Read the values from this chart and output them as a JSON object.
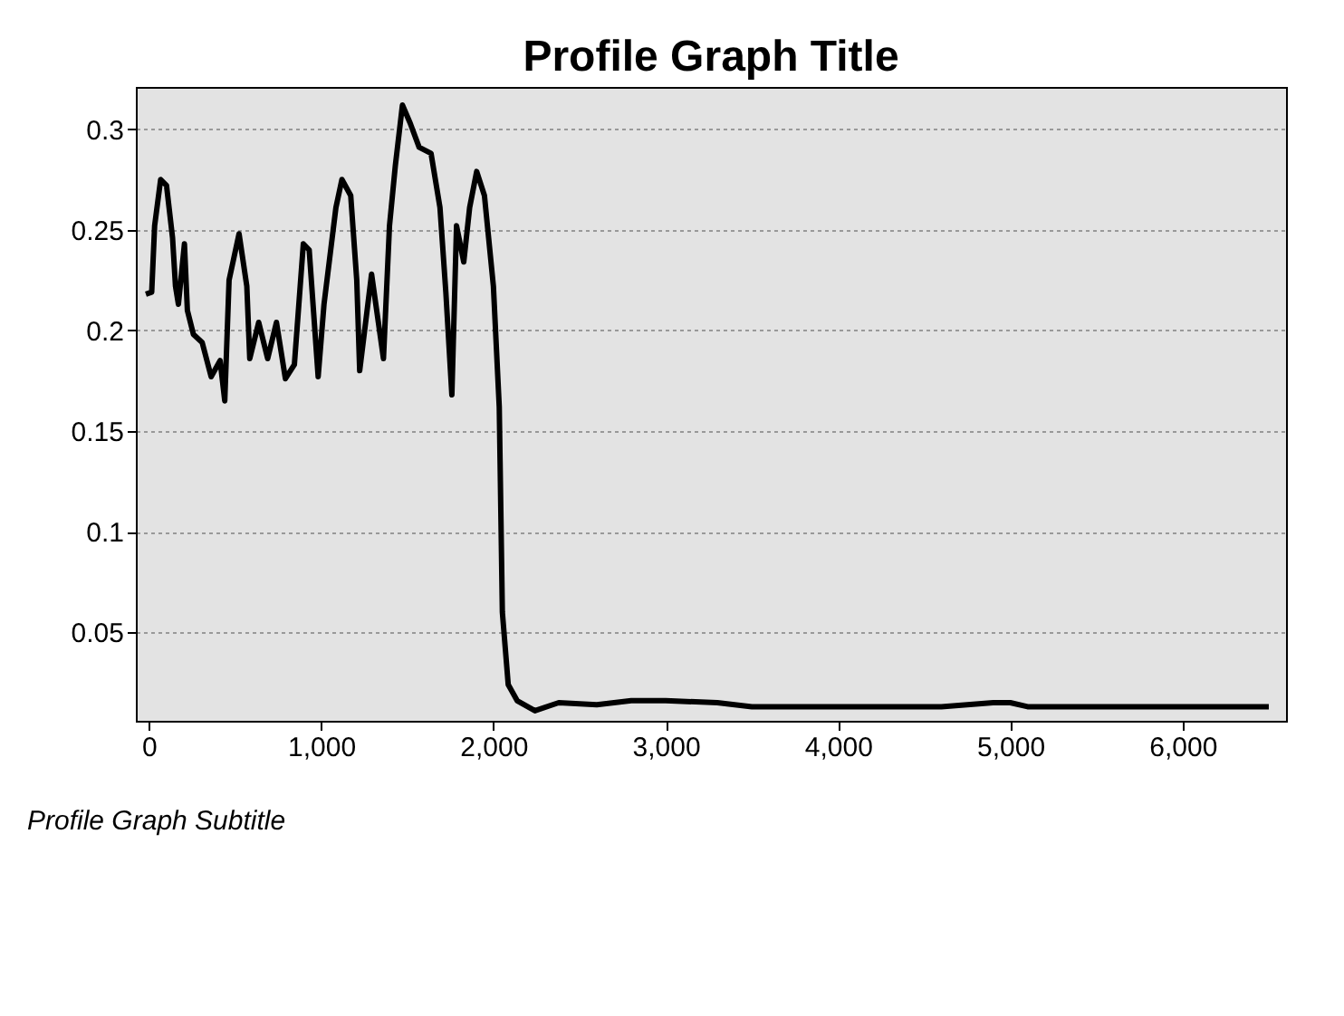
{
  "chart_data": {
    "type": "line",
    "title": "Profile Graph Title",
    "subtitle": "Profile Graph Subtitle",
    "x": [
      -17,
      17,
      34,
      69,
      103,
      138,
      155,
      172,
      207,
      224,
      259,
      310,
      362,
      414,
      441,
      466,
      524,
      569,
      586,
      638,
      690,
      741,
      793,
      845,
      897,
      931,
      983,
      1017,
      1086,
      1121,
      1172,
      1207,
      1224,
      1293,
      1362,
      1397,
      1431,
      1472,
      1517,
      1569,
      1638,
      1690,
      1724,
      1759,
      1786,
      1828,
      1862,
      1903,
      1948,
      2000,
      2034,
      2052,
      2086,
      2138,
      2241,
      2379,
      2600,
      2800,
      3000,
      3300,
      3500,
      3800,
      4200,
      4600,
      4900,
      5000,
      5100,
      5600,
      6000,
      6300,
      6500
    ],
    "series": [
      {
        "color": "#000000",
        "values": [
          0.218,
          0.219,
          0.252,
          0.275,
          0.272,
          0.246,
          0.222,
          0.213,
          0.243,
          0.21,
          0.198,
          0.194,
          0.177,
          0.185,
          0.165,
          0.225,
          0.248,
          0.222,
          0.186,
          0.204,
          0.186,
          0.204,
          0.176,
          0.183,
          0.243,
          0.24,
          0.177,
          0.213,
          0.261,
          0.275,
          0.267,
          0.225,
          0.18,
          0.228,
          0.186,
          0.252,
          0.282,
          0.312,
          0.303,
          0.291,
          0.288,
          0.261,
          0.219,
          0.168,
          0.252,
          0.234,
          0.261,
          0.279,
          0.267,
          0.222,
          0.162,
          0.06,
          0.024,
          0.016,
          0.011,
          0.015,
          0.014,
          0.016,
          0.016,
          0.015,
          0.013,
          0.013,
          0.013,
          0.013,
          0.015,
          0.015,
          0.013,
          0.013,
          0.013,
          0.013,
          0.013
        ]
      }
    ],
    "xlim": [
      -75,
      6600
    ],
    "xticks": [
      {
        "value": 0,
        "label": "0"
      },
      {
        "value": 1000,
        "label": "1,000"
      },
      {
        "value": 2000,
        "label": "2,000"
      },
      {
        "value": 3000,
        "label": "3,000"
      },
      {
        "value": 4000,
        "label": "4,000"
      },
      {
        "value": 5000,
        "label": "5,000"
      },
      {
        "value": 6000,
        "label": "6,000"
      }
    ],
    "ylim": [
      0.006,
      0.321
    ],
    "yticks": [
      0.05,
      0.1,
      0.15,
      0.2,
      0.25,
      0.3
    ],
    "grid": "y",
    "marker": "none",
    "line_style": "solid"
  }
}
